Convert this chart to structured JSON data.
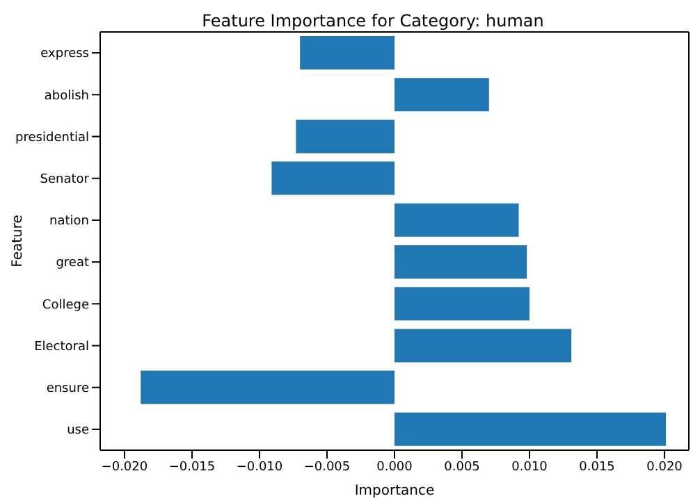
{
  "chart_data": {
    "type": "bar",
    "orientation": "horizontal",
    "title": "Feature Importance for Category: human",
    "xlabel": "Importance",
    "ylabel": "Feature",
    "categories": [
      "express",
      "abolish",
      "presidential",
      "Senator",
      "nation",
      "great",
      "College",
      "Electoral",
      "ensure",
      "use"
    ],
    "values": [
      -0.007,
      0.007,
      -0.0073,
      -0.0091,
      0.0092,
      0.0098,
      0.01,
      0.0131,
      -0.0188,
      0.0201
    ],
    "color": "#1f77b4",
    "xlim": [
      -0.0218,
      0.0218
    ],
    "xticks": [
      {
        "value": -0.02,
        "label": "−0.020"
      },
      {
        "value": -0.015,
        "label": "−0.015"
      },
      {
        "value": -0.01,
        "label": "−0.010"
      },
      {
        "value": -0.005,
        "label": "−0.005"
      },
      {
        "value": 0,
        "label": "0.000"
      },
      {
        "value": 0.005,
        "label": "0.005"
      },
      {
        "value": 0.01,
        "label": "0.010"
      },
      {
        "value": 0.015,
        "label": "0.015"
      },
      {
        "value": 0.02,
        "label": "0.020"
      }
    ],
    "grid": false,
    "legend": false
  }
}
